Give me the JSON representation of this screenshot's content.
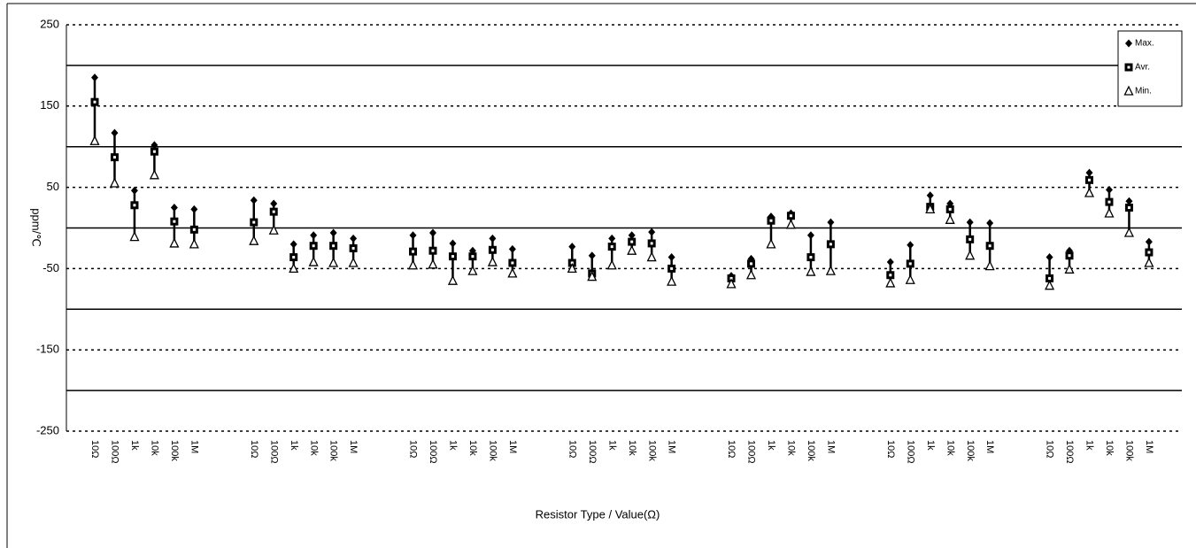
{
  "chart_data": {
    "type": "hilo",
    "x_label": "Resistor Type / Value(Ω)",
    "y_label": "ppm/℃",
    "categories": [
      "10Ω",
      "100Ω",
      "1k",
      "10k",
      "100k",
      "1M",
      null,
      null,
      "10Ω",
      "100Ω",
      "1k",
      "10k",
      "100k",
      "1M",
      null,
      null,
      "10Ω",
      "100Ω",
      "1k",
      "10k",
      "100k",
      "1M",
      null,
      null,
      "10Ω",
      "100Ω",
      "1k",
      "10k",
      "100k",
      "1M",
      null,
      null,
      "10Ω",
      "100Ω",
      "1k",
      "10k",
      "100k",
      "1M",
      null,
      null,
      "10Ω",
      "100Ω",
      "1k",
      "10k",
      "100k",
      "1M",
      null,
      null,
      "10Ω",
      "100Ω",
      "1k",
      "10k",
      "100k",
      "1M"
    ],
    "series": [
      {
        "name": "Max.",
        "color": "#000000",
        "values": [
          185,
          117,
          46,
          102,
          25,
          23,
          null,
          null,
          34,
          30,
          -20,
          -9,
          -6,
          -13,
          null,
          null,
          -9,
          -6,
          -19,
          -28,
          -13,
          -26,
          null,
          null,
          -23,
          -34,
          -13,
          -9,
          -5,
          -36,
          null,
          null,
          -59,
          -38,
          14,
          18,
          -9,
          7,
          null,
          null,
          -42,
          -21,
          40,
          30,
          7,
          6,
          null,
          null,
          -36,
          -28,
          68,
          47,
          33,
          -17
        ]
      },
      {
        "name": "Avr.",
        "color": "#000000",
        "values": [
          155,
          87,
          28,
          94,
          8,
          -2,
          null,
          null,
          7,
          20,
          -36,
          -22,
          -22,
          -25,
          null,
          null,
          -29,
          -28,
          -35,
          -35,
          -27,
          -43,
          null,
          null,
          -43,
          -56,
          -23,
          -17,
          -19,
          -50,
          null,
          null,
          -62,
          -44,
          9,
          15,
          -36,
          -20,
          null,
          null,
          -58,
          -44,
          26,
          23,
          -14,
          -22,
          null,
          null,
          -62,
          -34,
          59,
          32,
          25,
          -30
        ]
      },
      {
        "name": "Min.",
        "color": "#000000",
        "values": [
          107,
          55,
          -11,
          65,
          -19,
          -20,
          null,
          null,
          -16,
          -3,
          -50,
          -42,
          -43,
          -43,
          null,
          null,
          -46,
          -45,
          -65,
          -53,
          -42,
          -56,
          null,
          null,
          -50,
          -60,
          -46,
          -28,
          -36,
          -66,
          null,
          null,
          -69,
          -58,
          -20,
          4,
          -54,
          -53,
          null,
          null,
          -68,
          -64,
          23,
          10,
          -34,
          -47,
          null,
          null,
          -71,
          -51,
          43,
          18,
          -6,
          -43
        ]
      }
    ],
    "ylim": [
      -250,
      250
    ],
    "yticks": [
      -250,
      -150,
      -50,
      50,
      150,
      250
    ],
    "solid_gridlines": [
      -200,
      -100,
      0,
      100,
      200
    ],
    "legend": "upper right"
  }
}
